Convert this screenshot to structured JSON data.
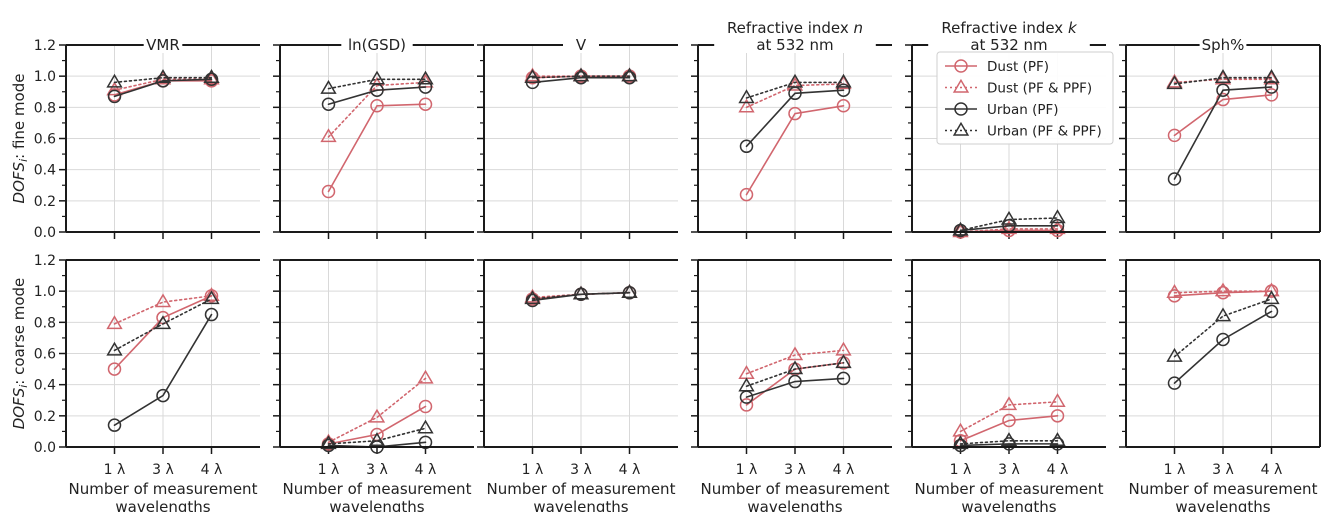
{
  "colors": {
    "dust": "#d1666e",
    "urban": "#333333",
    "grid": "#d9d9d9",
    "axis": "#1a1a1a"
  },
  "chart_data": {
    "type": "line",
    "categories": [
      "1 λ",
      "3 λ",
      "4 λ"
    ],
    "columns": [
      {
        "title_lines": [
          "VMR"
        ]
      },
      {
        "title_lines": [
          "ln(GSD)"
        ]
      },
      {
        "title_lines": [
          "V"
        ]
      },
      {
        "title_lines": [
          "Refractive index n",
          "at 532 nm"
        ]
      },
      {
        "title_lines": [
          "Refractive index k",
          "at 532 nm"
        ]
      },
      {
        "title_lines": [
          "Sph%"
        ]
      }
    ],
    "rows": [
      {
        "ylabel": "DOFS_i: fine mode"
      },
      {
        "ylabel": "DOFS_i: coarse mode"
      }
    ],
    "xlabel_lines": [
      "Number of measurement",
      "wavelengths"
    ],
    "ylim": [
      0,
      1.2
    ],
    "yticks": [
      "0.0",
      "0.2",
      "0.4",
      "0.6",
      "0.8",
      "1.0",
      "1.2"
    ],
    "grid": true,
    "legend": {
      "location": "fine mode, Refractive index k panel, top",
      "entries": [
        "Dust (PF)",
        "Dust (PF & PPF)",
        "Urban (PF)",
        "Urban (PF & PPF)"
      ]
    },
    "series_styles": [
      {
        "name": "Dust (PF)",
        "color": "#d1666e",
        "marker": "circle",
        "line": "solid"
      },
      {
        "name": "Dust (PF & PPF)",
        "color": "#d1666e",
        "marker": "triangle",
        "line": "dotted"
      },
      {
        "name": "Urban (PF)",
        "color": "#333333",
        "marker": "circle",
        "line": "solid"
      },
      {
        "name": "Urban (PF & PPF)",
        "color": "#333333",
        "marker": "triangle",
        "line": "dotted"
      }
    ],
    "panels": [
      {
        "row": 0,
        "col": 0,
        "series": [
          [
            0.88,
            0.97,
            0.97
          ],
          [
            0.91,
            0.98,
            0.98
          ],
          [
            0.87,
            0.97,
            0.98
          ],
          [
            0.96,
            0.99,
            0.99
          ]
        ]
      },
      {
        "row": 0,
        "col": 1,
        "series": [
          [
            0.26,
            0.81,
            0.82
          ],
          [
            0.61,
            0.94,
            0.96
          ],
          [
            0.82,
            0.91,
            0.93
          ],
          [
            0.92,
            0.98,
            0.98
          ]
        ]
      },
      {
        "row": 0,
        "col": 2,
        "series": [
          [
            0.99,
            1.0,
            1.0
          ],
          [
            1.0,
            1.0,
            1.0
          ],
          [
            0.96,
            0.99,
            0.99
          ],
          [
            0.99,
            1.0,
            1.0
          ]
        ]
      },
      {
        "row": 0,
        "col": 3,
        "series": [
          [
            0.24,
            0.76,
            0.81
          ],
          [
            0.8,
            0.94,
            0.95
          ],
          [
            0.55,
            0.89,
            0.91
          ],
          [
            0.86,
            0.96,
            0.96
          ]
        ]
      },
      {
        "row": 0,
        "col": 4,
        "series": [
          [
            0.0,
            0.01,
            0.01
          ],
          [
            0.0,
            0.02,
            0.02
          ],
          [
            0.01,
            0.04,
            0.04
          ],
          [
            0.01,
            0.08,
            0.09
          ]
        ]
      },
      {
        "row": 0,
        "col": 5,
        "series": [
          [
            0.62,
            0.85,
            0.88
          ],
          [
            0.96,
            0.98,
            0.98
          ],
          [
            0.34,
            0.91,
            0.93
          ],
          [
            0.95,
            0.99,
            0.99
          ]
        ]
      },
      {
        "row": 1,
        "col": 0,
        "series": [
          [
            0.5,
            0.83,
            0.97
          ],
          [
            0.79,
            0.93,
            0.97
          ],
          [
            0.14,
            0.33,
            0.85
          ],
          [
            0.62,
            0.79,
            0.95
          ]
        ]
      },
      {
        "row": 1,
        "col": 1,
        "series": [
          [
            0.02,
            0.08,
            0.26
          ],
          [
            0.03,
            0.19,
            0.44
          ],
          [
            0.01,
            0.0,
            0.03
          ],
          [
            0.02,
            0.04,
            0.12
          ]
        ]
      },
      {
        "row": 1,
        "col": 2,
        "series": [
          [
            0.95,
            0.98,
            0.99
          ],
          [
            0.96,
            0.98,
            0.99
          ],
          [
            0.94,
            0.98,
            0.99
          ],
          [
            0.95,
            0.98,
            0.99
          ]
        ]
      },
      {
        "row": 1,
        "col": 3,
        "series": [
          [
            0.27,
            0.5,
            0.54
          ],
          [
            0.47,
            0.59,
            0.62
          ],
          [
            0.32,
            0.42,
            0.44
          ],
          [
            0.39,
            0.5,
            0.54
          ]
        ]
      },
      {
        "row": 1,
        "col": 4,
        "series": [
          [
            0.04,
            0.17,
            0.2
          ],
          [
            0.1,
            0.27,
            0.29
          ],
          [
            0.01,
            0.02,
            0.02
          ],
          [
            0.02,
            0.04,
            0.04
          ]
        ]
      },
      {
        "row": 1,
        "col": 5,
        "series": [
          [
            0.97,
            0.99,
            1.0
          ],
          [
            0.99,
            1.0,
            1.0
          ],
          [
            0.41,
            0.69,
            0.87
          ],
          [
            0.58,
            0.84,
            0.95
          ]
        ]
      }
    ]
  }
}
